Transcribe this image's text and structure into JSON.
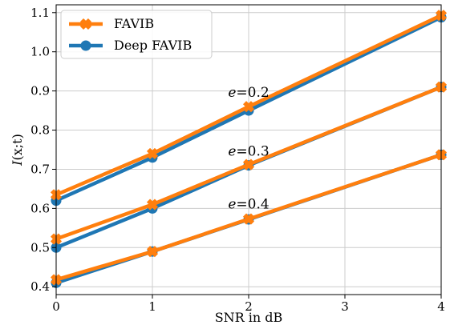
{
  "chart_data": {
    "type": "line",
    "xlabel": "SNR in dB",
    "ylabel": "I(x;t)",
    "ylabel_italic": "I",
    "ylabel_rest": "(x;t)",
    "xlim": [
      0,
      4
    ],
    "ylim": [
      0.38,
      1.12
    ],
    "xticks": [
      0,
      1,
      2,
      3,
      4
    ],
    "yticks": [
      0.4,
      0.5,
      0.6,
      0.7,
      0.8,
      0.9,
      1.0,
      1.1
    ],
    "xtick_labels": [
      "0",
      "1",
      "2",
      "3",
      "4"
    ],
    "ytick_labels": [
      "0.4",
      "0.5",
      "0.6",
      "0.7",
      "0.8",
      "0.9",
      "1.0",
      "1.1"
    ],
    "grid": true,
    "legend_position": "top-left",
    "x": [
      0,
      1,
      2,
      4
    ],
    "series": [
      {
        "name": "FAVIB",
        "group": "e=0.2",
        "values": [
          0.635,
          0.74,
          0.86,
          1.093
        ]
      },
      {
        "name": "Deep FAVIB",
        "group": "e=0.2",
        "values": [
          0.62,
          0.73,
          0.85,
          1.088
        ]
      },
      {
        "name": "FAVIB",
        "group": "e=0.3",
        "values": [
          0.522,
          0.61,
          0.712,
          0.91
        ]
      },
      {
        "name": "Deep FAVIB",
        "group": "e=0.3",
        "values": [
          0.5,
          0.6,
          0.71,
          0.91
        ]
      },
      {
        "name": "FAVIB",
        "group": "e=0.4",
        "values": [
          0.418,
          0.49,
          0.573,
          0.737
        ]
      },
      {
        "name": "Deep FAVIB",
        "group": "e=0.4",
        "values": [
          0.41,
          0.49,
          0.572,
          0.737
        ]
      }
    ],
    "legend": [
      {
        "label": "FAVIB",
        "color": "#ff7f0e",
        "marker": "X"
      },
      {
        "label": "Deep FAVIB",
        "color": "#1f77b4",
        "marker": "o"
      }
    ],
    "annotations": [
      {
        "italic": "e",
        "rest": "=0.2",
        "x": 2.0,
        "y": 0.885
      },
      {
        "italic": "e",
        "rest": "=0.3",
        "x": 2.0,
        "y": 0.735
      },
      {
        "italic": "e",
        "rest": "=0.4",
        "x": 2.0,
        "y": 0.6
      }
    ],
    "colors": {
      "favib": "#ff7f0e",
      "deep_favib": "#1f77b4",
      "grid": "#cccccc"
    }
  }
}
